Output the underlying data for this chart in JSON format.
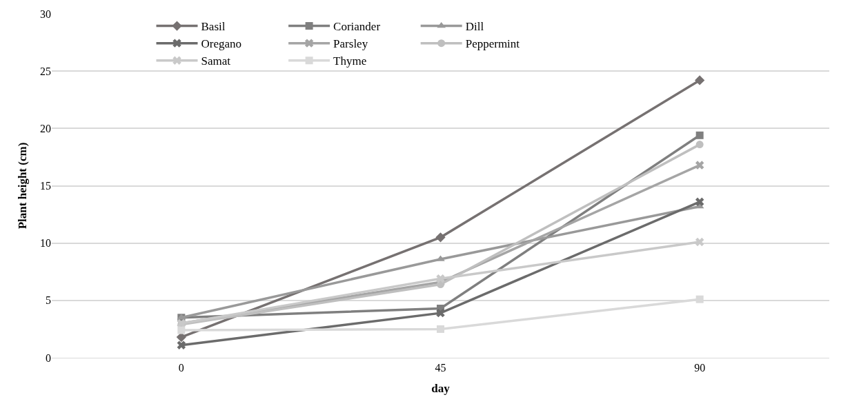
{
  "chart_data": {
    "type": "line",
    "xlabel": "day",
    "ylabel": "Plant height (cm)",
    "categories": [
      "0",
      "45",
      "90"
    ],
    "series": [
      {
        "name": "Basil",
        "color": "#767171",
        "marker": "diamond",
        "values": [
          1.8,
          10.5,
          24.2
        ]
      },
      {
        "name": "Coriander",
        "color": "#7f7f7f",
        "marker": "square",
        "values": [
          3.5,
          4.3,
          19.4
        ]
      },
      {
        "name": "Dill",
        "color": "#999999",
        "marker": "triangle",
        "values": [
          3.5,
          8.6,
          13.2
        ]
      },
      {
        "name": "Oregano",
        "color": "#6b6b6b",
        "marker": "cross",
        "values": [
          1.1,
          3.9,
          13.6
        ]
      },
      {
        "name": "Parsley",
        "color": "#a5a5a5",
        "marker": "cross",
        "values": [
          3.0,
          6.6,
          16.8
        ]
      },
      {
        "name": "Peppermint",
        "color": "#bfbfbf",
        "marker": "circle",
        "values": [
          2.9,
          6.4,
          18.6
        ]
      },
      {
        "name": "Samat",
        "color": "#c9c9c9",
        "marker": "cross",
        "values": [
          3.0,
          6.9,
          10.1
        ]
      },
      {
        "name": "Thyme",
        "color": "#d9d9d9",
        "marker": "square",
        "values": [
          2.4,
          2.5,
          5.1
        ]
      }
    ],
    "ylim": [
      0,
      30
    ],
    "yticks": [
      0,
      5,
      10,
      15,
      20,
      25,
      30
    ],
    "grid": "y",
    "legend": "top left",
    "line_style": "solid"
  }
}
